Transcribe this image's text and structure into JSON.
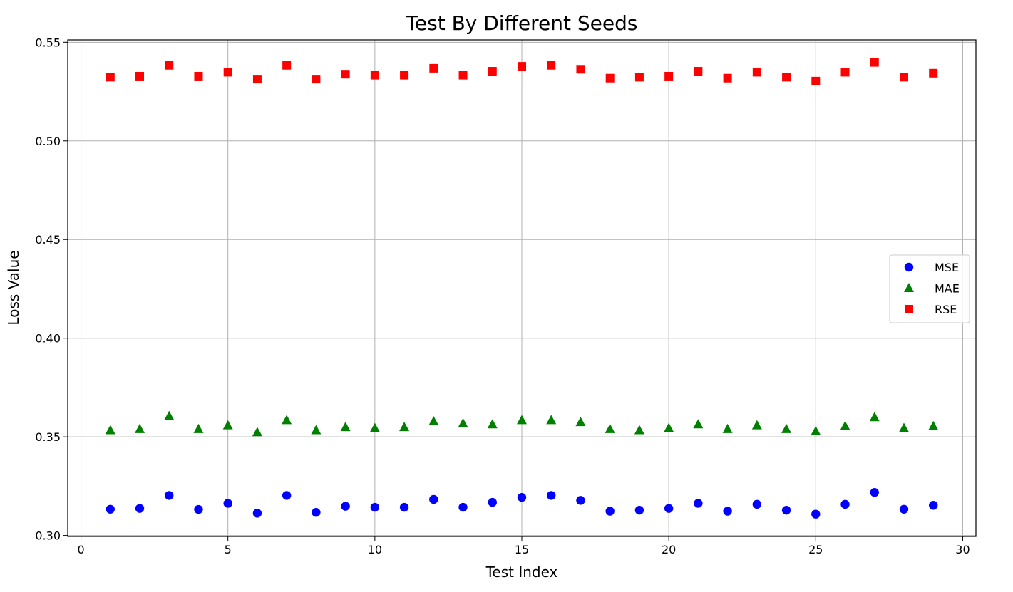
{
  "chart_data": {
    "type": "scatter",
    "title": "Test By Different Seeds",
    "xlabel": "Test Index",
    "ylabel": "Loss Value",
    "xlim": [
      -0.45,
      30.45
    ],
    "ylim": [
      0.2995,
      0.5512
    ],
    "xticks": [
      0,
      5,
      10,
      15,
      20,
      25,
      30
    ],
    "xtick_labels": [
      "0",
      "5",
      "10",
      "15",
      "20",
      "25",
      "30"
    ],
    "yticks": [
      0.3,
      0.35,
      0.4,
      0.45,
      0.5,
      0.55
    ],
    "ytick_labels": [
      "0.30",
      "0.35",
      "0.40",
      "0.45",
      "0.50",
      "0.55"
    ],
    "grid": true,
    "legend_position": "center-right",
    "x": [
      1,
      2,
      3,
      4,
      5,
      6,
      7,
      8,
      9,
      10,
      11,
      12,
      13,
      14,
      15,
      16,
      17,
      18,
      19,
      20,
      21,
      22,
      23,
      24,
      25,
      26,
      27,
      28,
      29
    ],
    "series": [
      {
        "name": "MSE",
        "marker": "circle",
        "color": "#0000ff",
        "values": [
          0.3133,
          0.3137,
          0.3203,
          0.3132,
          0.3163,
          0.3113,
          0.3203,
          0.3117,
          0.3148,
          0.3143,
          0.3143,
          0.3183,
          0.3143,
          0.3168,
          0.3193,
          0.3203,
          0.3178,
          0.3123,
          0.3128,
          0.3137,
          0.3163,
          0.3123,
          0.3158,
          0.3128,
          0.3108,
          0.3158,
          0.3218,
          0.3133,
          0.3153
        ]
      },
      {
        "name": "MAE",
        "marker": "triangle",
        "color": "#008000",
        "values": [
          0.3533,
          0.3539,
          0.3605,
          0.3539,
          0.3558,
          0.3523,
          0.3584,
          0.3533,
          0.3549,
          0.3544,
          0.3549,
          0.3578,
          0.3568,
          0.3563,
          0.3584,
          0.3584,
          0.3574,
          0.3539,
          0.3533,
          0.3544,
          0.3563,
          0.3539,
          0.3558,
          0.3539,
          0.3528,
          0.3554,
          0.3599,
          0.3544,
          0.3554
        ]
      },
      {
        "name": "RSE",
        "marker": "square",
        "color": "#ff0000",
        "values": [
          0.5323,
          0.5328,
          0.5383,
          0.5328,
          0.5348,
          0.5313,
          0.5383,
          0.5313,
          0.5338,
          0.5333,
          0.5333,
          0.5368,
          0.5333,
          0.5353,
          0.5378,
          0.5383,
          0.5363,
          0.5318,
          0.5323,
          0.5328,
          0.5353,
          0.5318,
          0.5348,
          0.5323,
          0.5303,
          0.5348,
          0.5398,
          0.5323,
          0.5343
        ]
      }
    ]
  }
}
